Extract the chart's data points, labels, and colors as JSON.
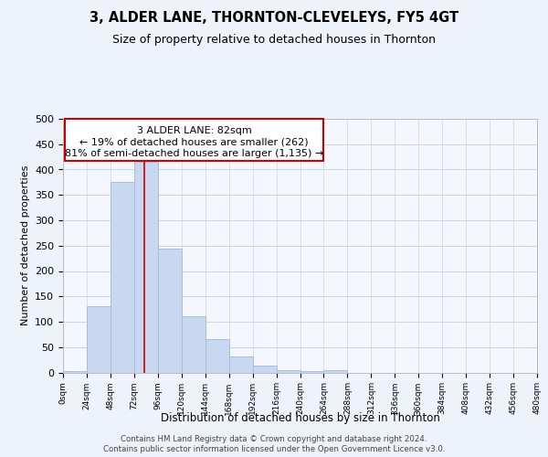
{
  "title": "3, ALDER LANE, THORNTON-CLEVELEYS, FY5 4GT",
  "subtitle": "Size of property relative to detached houses in Thornton",
  "xlabel": "Distribution of detached houses by size in Thornton",
  "ylabel": "Number of detached properties",
  "bar_color": "#c8d8f0",
  "bar_edge_color": "#a8bedd",
  "bins": [
    0,
    24,
    48,
    72,
    96,
    120,
    144,
    168,
    192,
    216,
    240,
    264,
    288,
    312,
    336,
    360,
    384,
    408,
    432,
    456,
    480
  ],
  "counts": [
    3,
    130,
    375,
    415,
    245,
    110,
    65,
    32,
    14,
    5,
    3,
    5,
    0,
    0,
    0,
    0,
    0,
    0,
    0,
    0
  ],
  "tick_labels": [
    "0sqm",
    "24sqm",
    "48sqm",
    "72sqm",
    "96sqm",
    "120sqm",
    "144sqm",
    "168sqm",
    "192sqm",
    "216sqm",
    "240sqm",
    "264sqm",
    "288sqm",
    "312sqm",
    "336sqm",
    "360sqm",
    "384sqm",
    "408sqm",
    "432sqm",
    "456sqm",
    "480sqm"
  ],
  "ylim": [
    0,
    500
  ],
  "yticks": [
    0,
    50,
    100,
    150,
    200,
    250,
    300,
    350,
    400,
    450,
    500
  ],
  "property_line_x": 82,
  "property_line_color": "#cc0000",
  "ann_line1": "3 ALDER LANE: 82sqm",
  "ann_line2": "← 19% of detached houses are smaller (262)",
  "ann_line3": "81% of semi-detached houses are larger (1,135) →",
  "footer_line1": "Contains HM Land Registry data © Crown copyright and database right 2024.",
  "footer_line2": "Contains public sector information licensed under the Open Government Licence v3.0.",
  "background_color": "#eef2fb",
  "plot_background_color": "#f4f7fd",
  "grid_color": "#c8d4e8"
}
